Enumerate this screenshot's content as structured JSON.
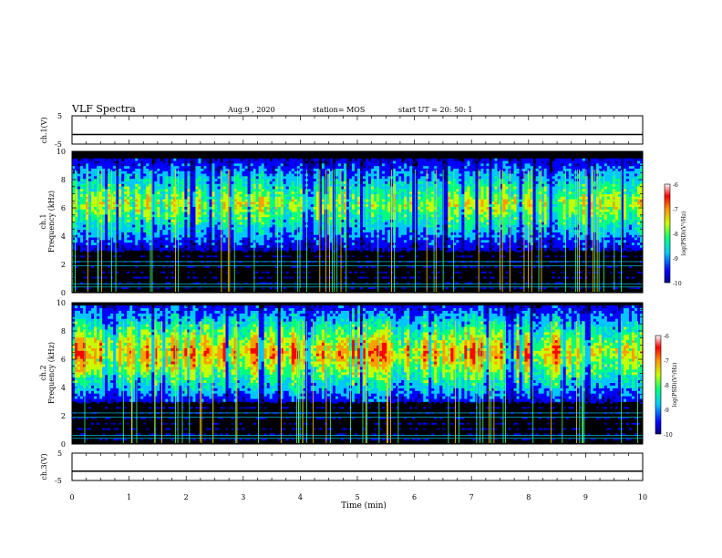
{
  "header": {
    "title": "VLF Spectra",
    "date": "Aug.9 , 2020",
    "station": "station= MOS",
    "start": "start UT = 20: 50: 1"
  },
  "chart_data": [
    {
      "type": "line",
      "name": "ch1-voltage",
      "ylabel": "ch.1(V)",
      "ylim": [
        -5,
        5
      ],
      "yticks": [
        "5",
        "-5"
      ],
      "x": [
        0,
        10
      ],
      "values": [
        -1.6,
        -1.6
      ]
    },
    {
      "type": "heatmap",
      "name": "ch1-spectrogram",
      "ylabel": [
        "ch.1",
        "Frequency (kHz)"
      ],
      "ylim": [
        0,
        10
      ],
      "yticks": [
        "0",
        "2",
        "4",
        "6",
        "8",
        "10"
      ],
      "band_khz": [
        3,
        9.5
      ],
      "colorbar": {
        "label": "log(PSD)(V²/Hz)",
        "ticks": [
          "-6",
          "-7",
          "-8",
          "-9",
          "-10"
        ],
        "range": [
          -10,
          -6
        ]
      }
    },
    {
      "type": "heatmap",
      "name": "ch2-spectrogram",
      "ylabel": [
        "ch.2",
        "Frequency (kHz)"
      ],
      "ylim": [
        0,
        10
      ],
      "yticks": [
        "0",
        "2",
        "4",
        "6",
        "8",
        "10"
      ],
      "band_khz": [
        3,
        9.8
      ],
      "colorbar": {
        "label": "log(PSD)(V²/Hz)",
        "ticks": [
          "-6",
          "-7",
          "-8",
          "-9",
          "-10"
        ],
        "range": [
          -10,
          -6
        ]
      }
    },
    {
      "type": "line",
      "name": "ch3-voltage",
      "ylabel": "ch.3(V)",
      "ylim": [
        -5,
        5
      ],
      "yticks": [
        "5",
        "-5"
      ],
      "x": [
        0,
        10
      ],
      "values": [
        -1.6,
        -1.6
      ]
    }
  ],
  "xaxis": {
    "label": "Time (min)",
    "range": [
      0,
      10
    ],
    "ticks": [
      "0",
      "1",
      "2",
      "3",
      "4",
      "5",
      "6",
      "7",
      "8",
      "9",
      "10"
    ]
  },
  "colors": {
    "background": "#000000",
    "colormap": [
      "#00008b",
      "#0000ff",
      "#00c8ff",
      "#00ff80",
      "#c8ff00",
      "#ffa000",
      "#ff0000",
      "#ffffff"
    ]
  }
}
